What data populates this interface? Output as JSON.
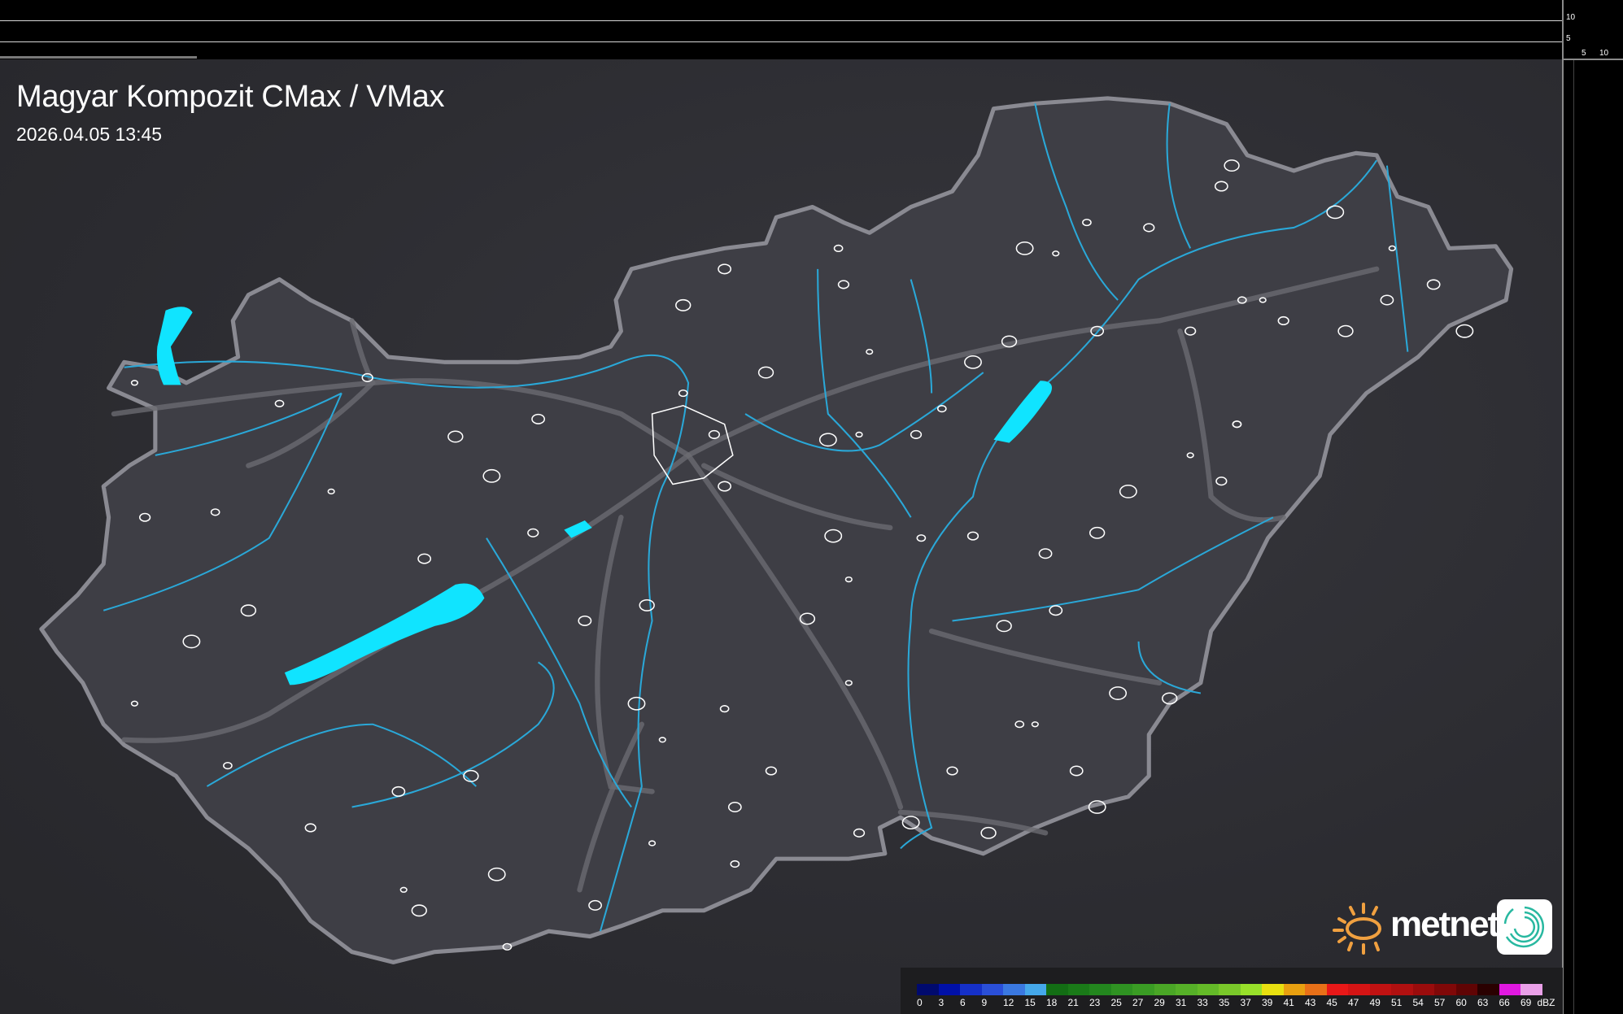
{
  "header": {
    "title": "Magyar Kompozit CMax / VMax",
    "timestamp": "2026.04.05 13:45"
  },
  "side_axis": {
    "vertical_ticks": [
      "10",
      "5"
    ],
    "horizontal_ticks": [
      "5",
      "10"
    ]
  },
  "legend": {
    "unit": "dBZ",
    "labels": [
      "0",
      "3",
      "6",
      "9",
      "12",
      "15",
      "18",
      "21",
      "23",
      "25",
      "27",
      "29",
      "31",
      "33",
      "35",
      "37",
      "39",
      "41",
      "43",
      "45",
      "47",
      "49",
      "51",
      "54",
      "57",
      "60",
      "63",
      "66",
      "69"
    ],
    "colors": [
      "#000a6e",
      "#0010a8",
      "#1530c8",
      "#2a4fd8",
      "#3a78e0",
      "#45a8ea",
      "#136e14",
      "#1a7a18",
      "#23861e",
      "#2f9222",
      "#3a9c24",
      "#4aa626",
      "#56b028",
      "#64ba28",
      "#7ac82a",
      "#98e02a",
      "#e8e010",
      "#e8a010",
      "#e87018",
      "#e81818",
      "#d41414",
      "#c01212",
      "#b01010",
      "#9a0c0c",
      "#800808",
      "#600404",
      "#2a0000",
      "#e018e0",
      "#eaa0e8",
      "#88e4e8"
    ]
  },
  "logo": {
    "text": "metnet",
    "sun_color": "#f0a040",
    "icon_color": "#28b8a0"
  },
  "map_colors": {
    "background": "#2e2e33",
    "country_fill": "#3e3e45",
    "border": "#8a8a92",
    "rivers": "#2aa8d8",
    "lakes": "#10e4ff",
    "roads": "#6a6a70",
    "settlements": "#ffffff"
  }
}
